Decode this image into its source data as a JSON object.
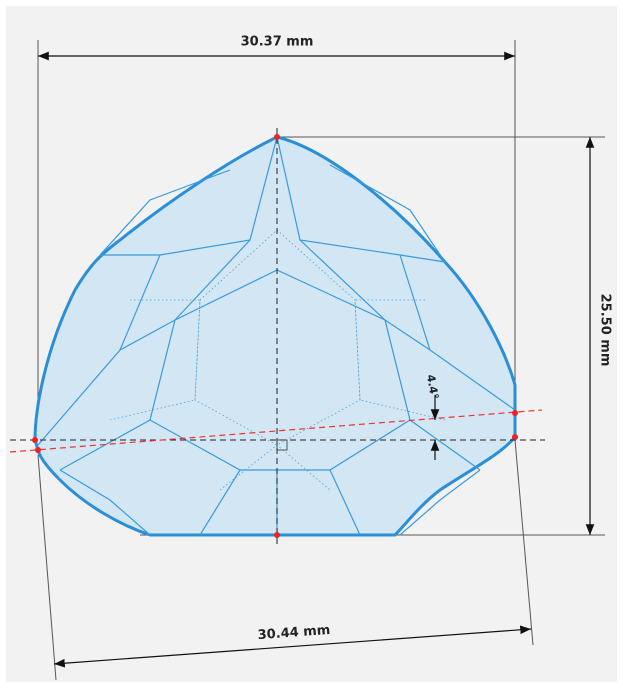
{
  "dimensions": {
    "top_width": "30.37 mm",
    "height": "25.50 mm",
    "bottom_width": "30.44 mm",
    "angle": "4.4°"
  }
}
